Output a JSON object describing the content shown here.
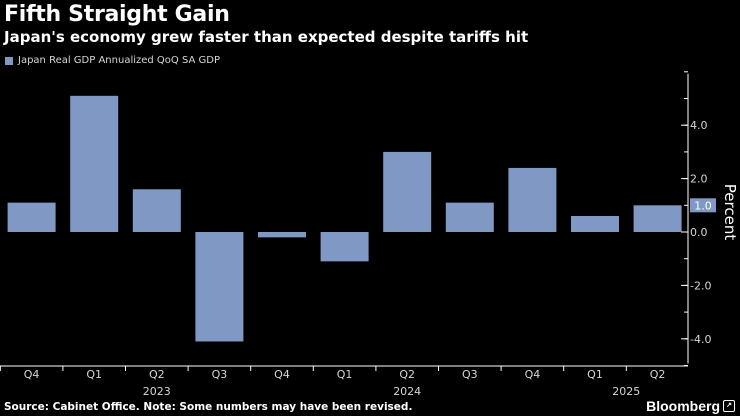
{
  "header": {
    "title": "Fifth Straight Gain",
    "subtitle": "Japan's economy grew faster than expected despite tariffs hit"
  },
  "footer": {
    "source": "Source: Cabinet Office. Note: Some numbers may have been revised.",
    "brand": "Bloomberg",
    "brand_icon": "↗"
  },
  "colors": {
    "bar": "#7f98c4",
    "background": "#000000",
    "axis": "#ffffff",
    "tick_text": "#d6d6d6"
  },
  "chart_data": {
    "type": "bar",
    "title": "Fifth Straight Gain",
    "subtitle": "Japan's economy grew faster than expected despite tariffs hit",
    "legend": [
      "Japan Real GDP Annualized QoQ SA GDP"
    ],
    "legend_position": "top-left",
    "categories": [
      "Q4",
      "Q1",
      "Q2",
      "Q3",
      "Q4",
      "Q1",
      "Q2",
      "Q3",
      "Q4",
      "Q1",
      "Q2"
    ],
    "year_labels": [
      {
        "label": "2023",
        "category_index": 2
      },
      {
        "label": "2024",
        "category_index": 6
      },
      {
        "label": "2025",
        "category_index": 9.5
      }
    ],
    "series": [
      {
        "name": "Japan Real GDP Annualized QoQ SA GDP",
        "values": [
          1.1,
          5.1,
          1.6,
          -4.1,
          -0.2,
          -1.1,
          3.0,
          1.1,
          2.4,
          0.6,
          1.0
        ]
      }
    ],
    "ylabel": "Percent",
    "xlabel": "",
    "yticks": [
      4.0,
      2.0,
      0.0,
      -2.0,
      -4.0
    ],
    "ytick_labels": [
      "4.0",
      "2.0",
      "0.0",
      "-2.0",
      "-4.0"
    ],
    "ylim": [
      -5.0,
      6.0
    ],
    "last_value_label": "1.0",
    "grid": false,
    "axis_side": "right"
  }
}
